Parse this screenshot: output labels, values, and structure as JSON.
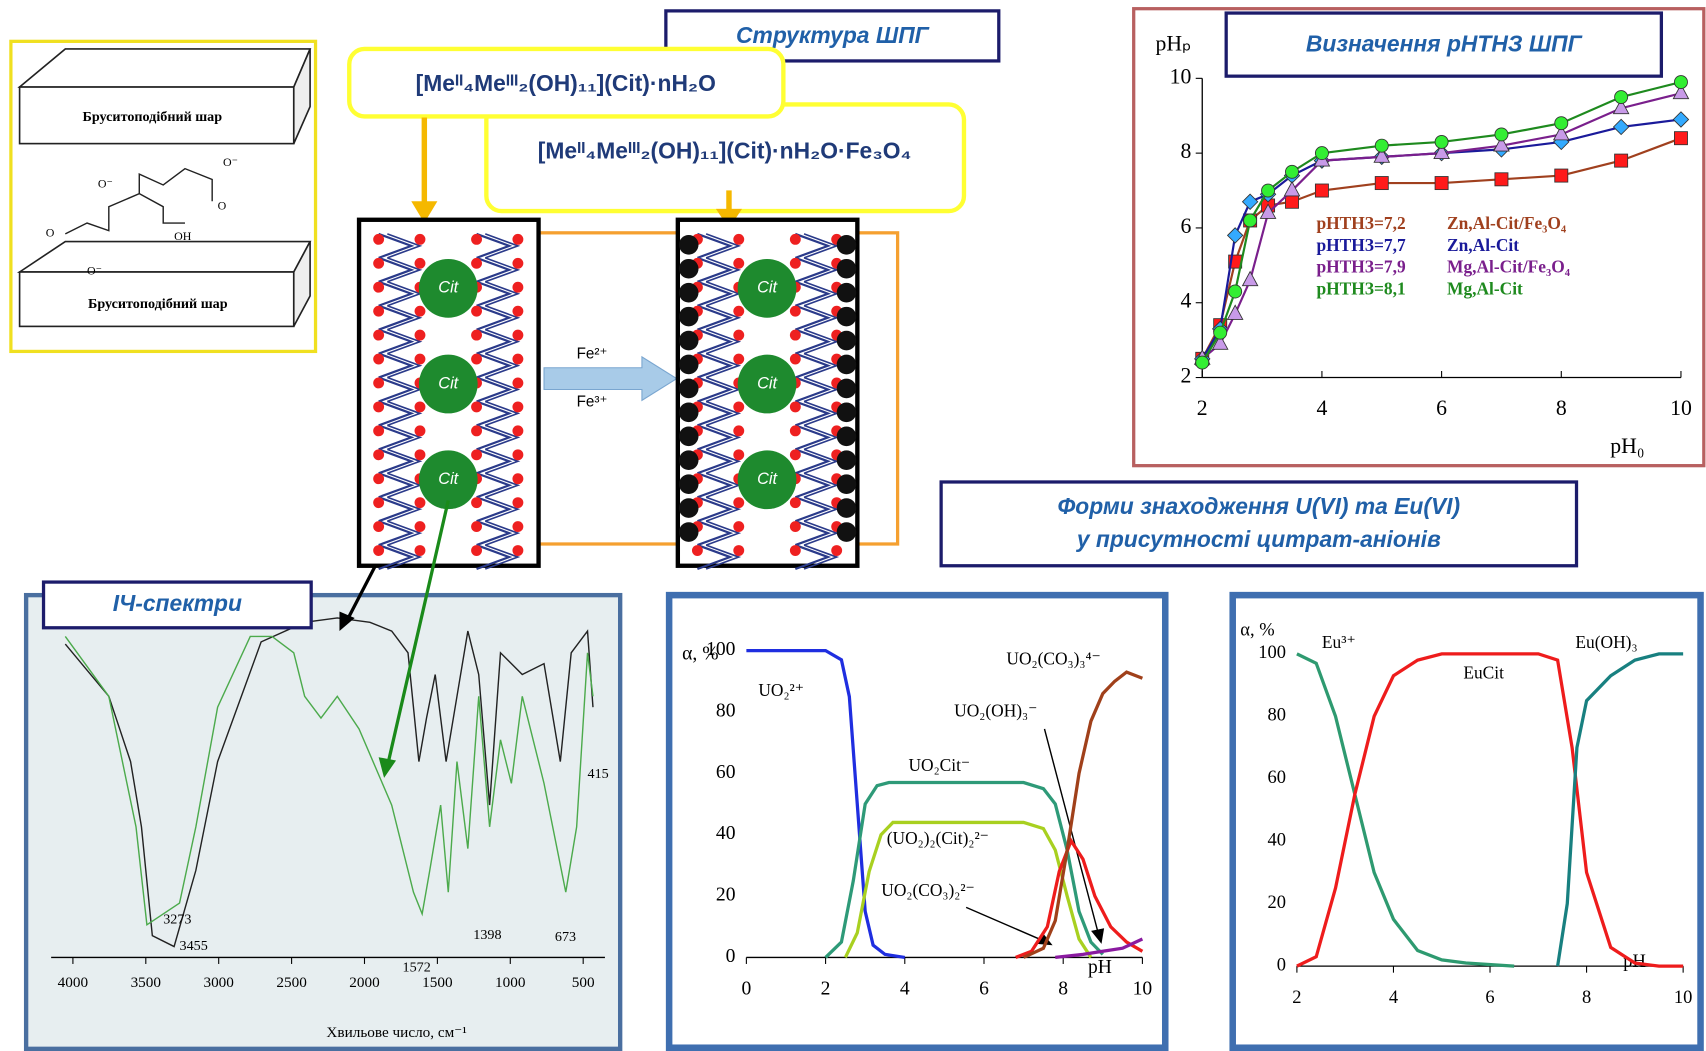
{
  "structure": {
    "title": "Структура ШПГ",
    "formula_1": "[Meᴵᴵ₄Meᴵᴵᴵ₂(OH)₁₁](Cit)·nH₂O",
    "formula_2": "[Meᴵᴵ₄Meᴵᴵᴵ₂(OH)₁₁](Cit)·nH₂O·Fe₃O₄",
    "layer_labels": [
      "Бруситоподібний шар",
      "Бруситоподібний шар"
    ],
    "anion_labels": [
      "Cit",
      "Cit",
      "Cit",
      "Cit",
      "Cit",
      "Cit"
    ],
    "ions": [
      "Fe²⁺",
      "Fe³⁺"
    ]
  },
  "speciation_title": [
    "Форми знаходження U(VI) та Eu(VI)",
    "у присутності цитрат-аніонів"
  ],
  "chart_data": [
    {
      "type": "line",
      "title": "Визначення pHТНЗ ШПГ",
      "x_label": "pH₀",
      "y_label": "pHₚ",
      "x": [
        2,
        2.3,
        2.55,
        2.8,
        3.1,
        3.5,
        4,
        5,
        6,
        7,
        8,
        9,
        10
      ],
      "xlim": [
        2,
        10
      ],
      "xticks": [
        2,
        4,
        6,
        8,
        10
      ],
      "ylim": [
        2,
        10
      ],
      "yticks": [
        2,
        4,
        6,
        8,
        10
      ],
      "series": [
        {
          "name": "Zn,Al-Cit/Fe₃O₄",
          "pzc_label": "pHТНЗ=7,2",
          "color": "#a0401e",
          "marker": "square",
          "marker_color": "#ff1a1a",
          "values": [
            2.5,
            3.4,
            5.1,
            6.2,
            6.6,
            6.7,
            7.0,
            7.2,
            7.2,
            7.3,
            7.4,
            7.8,
            8.4
          ]
        },
        {
          "name": "Zn,Al-Cit",
          "pzc_label": "pHТНЗ=7,7",
          "color": "#1a1a9a",
          "marker": "diamond",
          "marker_color": "#33aaff",
          "values": [
            2.5,
            3.3,
            5.8,
            6.7,
            6.9,
            7.4,
            7.8,
            7.9,
            8.0,
            8.1,
            8.3,
            8.7,
            8.9
          ]
        },
        {
          "name": "Mg,Al-Cit/Fe₃O₄",
          "pzc_label": "pHТНЗ=7,9",
          "color": "#7a1f8c",
          "marker": "triangle",
          "marker_color": "#c89ae8",
          "values": [
            2.5,
            2.9,
            3.7,
            4.6,
            6.4,
            7.0,
            7.8,
            7.9,
            8.0,
            8.2,
            8.5,
            9.2,
            9.6
          ]
        },
        {
          "name": "Mg,Al-Cit",
          "pzc_label": "pHТНЗ=8,1",
          "color": "#1e8a1e",
          "marker": "circle",
          "marker_color": "#33ee33",
          "values": [
            2.4,
            3.2,
            4.3,
            6.2,
            7.0,
            7.5,
            8.0,
            8.2,
            8.3,
            8.5,
            8.8,
            9.5,
            9.9
          ]
        }
      ]
    },
    {
      "type": "line",
      "x_label": "pH",
      "y_label": "α, %",
      "xlim": [
        0,
        10
      ],
      "xticks": [
        0,
        2,
        4,
        6,
        8,
        10
      ],
      "ylim": [
        0,
        100
      ],
      "yticks": [
        0,
        20,
        40,
        60,
        80,
        100
      ],
      "series": [
        {
          "name": "UO₂²⁺",
          "color": "#1f2ee0",
          "x": [
            0,
            2,
            2.4,
            2.6,
            2.8,
            3.0,
            3.2,
            3.5,
            4.0
          ],
          "values": [
            100,
            100,
            97,
            85,
            50,
            15,
            4,
            1,
            0
          ]
        },
        {
          "name": "UO₂Cit⁻",
          "color": "#2e9a78",
          "x": [
            2,
            2.4,
            2.7,
            3.0,
            3.3,
            3.6,
            4,
            5,
            6,
            7,
            7.5,
            7.8,
            8.1,
            8.4,
            8.7,
            9.0
          ],
          "values": [
            0,
            5,
            25,
            50,
            56,
            57,
            57,
            57,
            57,
            57,
            55,
            50,
            35,
            15,
            5,
            1
          ]
        },
        {
          "name": "(UO₂)₂(Cit)₂²⁻",
          "color": "#a8d020",
          "x": [
            2.5,
            2.8,
            3.1,
            3.4,
            3.7,
            4,
            5,
            6,
            7,
            7.5,
            7.8,
            8.1,
            8.4,
            8.7
          ],
          "values": [
            0,
            8,
            28,
            40,
            44,
            44,
            44,
            44,
            44,
            42,
            35,
            20,
            6,
            0
          ]
        },
        {
          "name": "UO₂(CO₃)₂²⁻",
          "color": "#ee1c1c",
          "x": [
            6.8,
            7.2,
            7.6,
            7.9,
            8.2,
            8.5,
            8.8,
            9.2,
            9.6,
            10
          ],
          "values": [
            0,
            2,
            10,
            28,
            38,
            32,
            20,
            10,
            5,
            2
          ]
        },
        {
          "name": "UO₂(OH)₃⁻",
          "color": "#8a1aa0",
          "x": [
            7.8,
            8.5,
            9,
            9.5,
            10
          ],
          "values": [
            0,
            1,
            2,
            3,
            6
          ]
        },
        {
          "name": "UO₂(CO₃)₃⁴⁻",
          "color": "#a0401a",
          "x": [
            7,
            7.5,
            7.8,
            8.1,
            8.4,
            8.7,
            9,
            9.3,
            9.6,
            10
          ],
          "values": [
            0,
            3,
            12,
            35,
            60,
            77,
            86,
            90,
            93,
            91
          ]
        }
      ]
    },
    {
      "type": "line",
      "x_label": "pH",
      "y_label": "α, %",
      "xlim": [
        2,
        10
      ],
      "xticks": [
        2,
        4,
        6,
        8,
        10
      ],
      "ylim": [
        0,
        100
      ],
      "yticks": [
        0,
        20,
        40,
        60,
        80,
        100
      ],
      "series": [
        {
          "name": "Eu³⁺",
          "color": "#2e9a70",
          "x": [
            2,
            2.4,
            2.8,
            3.2,
            3.6,
            4,
            4.5,
            5,
            5.5,
            6.5
          ],
          "values": [
            100,
            97,
            80,
            55,
            30,
            15,
            5,
            2,
            1,
            0
          ]
        },
        {
          "name": "EuCit",
          "color": "#ee1c1c",
          "x": [
            2,
            2.4,
            2.8,
            3.2,
            3.6,
            4,
            4.5,
            5,
            6,
            7,
            7.4,
            7.7,
            8,
            8.5,
            9,
            9.5,
            10
          ],
          "values": [
            0,
            3,
            25,
            55,
            80,
            93,
            98,
            100,
            100,
            100,
            98,
            70,
            30,
            6,
            1,
            0,
            0
          ]
        },
        {
          "name": "Eu(OH)₃",
          "color": "#188080",
          "x": [
            7.4,
            7.6,
            7.8,
            8,
            8.5,
            9,
            9.5,
            10
          ],
          "values": [
            0,
            20,
            70,
            85,
            93,
            98,
            100,
            100
          ]
        }
      ]
    },
    {
      "type": "spectrum",
      "title": "ІЧ-спектри",
      "x_label": "Хвильове число, см⁻¹",
      "xlim": [
        4000,
        500
      ],
      "xticks": [
        4000,
        3500,
        3000,
        2500,
        2000,
        1500,
        1000,
        500
      ],
      "peaks": [
        3273,
        3455,
        1572,
        1398,
        673,
        415
      ]
    }
  ]
}
